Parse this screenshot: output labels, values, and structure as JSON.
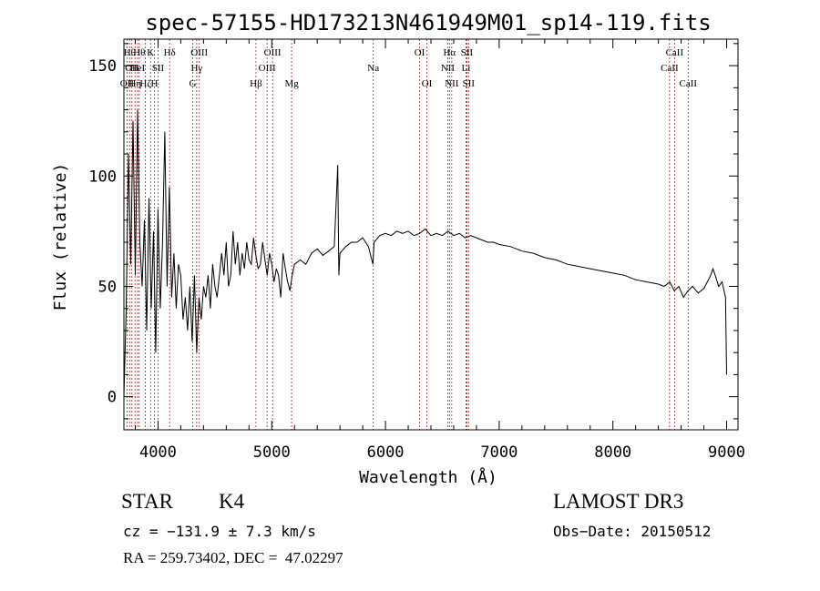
{
  "chart_data": {
    "type": "line",
    "title": "spec-57155-HD173213N461949M01_sp14-119.fits",
    "xlabel": "Wavelength (Å)",
    "ylabel": "Flux (relative)",
    "xlim": [
      3700,
      9100
    ],
    "ylim": [
      -15,
      162
    ],
    "xticks": [
      4000,
      5000,
      6000,
      7000,
      8000,
      9000
    ],
    "yticks": [
      0,
      50,
      100,
      150
    ],
    "series": [
      {
        "name": "flux",
        "x": [
          3700,
          3720,
          3740,
          3760,
          3780,
          3800,
          3820,
          3840,
          3860,
          3880,
          3900,
          3920,
          3940,
          3960,
          3980,
          4000,
          4020,
          4040,
          4060,
          4080,
          4100,
          4120,
          4140,
          4160,
          4180,
          4200,
          4220,
          4240,
          4260,
          4280,
          4300,
          4320,
          4340,
          4360,
          4380,
          4400,
          4420,
          4440,
          4460,
          4480,
          4500,
          4520,
          4540,
          4560,
          4580,
          4600,
          4620,
          4640,
          4660,
          4680,
          4700,
          4720,
          4740,
          4760,
          4780,
          4800,
          4820,
          4840,
          4860,
          4880,
          4900,
          4920,
          4940,
          4960,
          4980,
          5000,
          5020,
          5040,
          5060,
          5080,
          5100,
          5120,
          5140,
          5160,
          5180,
          5200,
          5250,
          5300,
          5350,
          5400,
          5450,
          5500,
          5550,
          5580,
          5590,
          5600,
          5650,
          5700,
          5750,
          5800,
          5850,
          5890,
          5900,
          5950,
          6000,
          6050,
          6100,
          6150,
          6200,
          6250,
          6300,
          6350,
          6400,
          6450,
          6500,
          6550,
          6600,
          6650,
          6700,
          6750,
          6800,
          6850,
          6900,
          6950,
          7000,
          7100,
          7200,
          7300,
          7400,
          7500,
          7600,
          7700,
          7800,
          7900,
          8000,
          8100,
          8200,
          8300,
          8400,
          8450,
          8500,
          8540,
          8580,
          8620,
          8660,
          8700,
          8750,
          8800,
          8830,
          8860,
          8880,
          8900,
          8930,
          8960,
          8990,
          9000
        ],
        "values": [
          0,
          40,
          110,
          60,
          125,
          55,
          130,
          70,
          50,
          80,
          30,
          90,
          40,
          75,
          20,
          85,
          40,
          70,
          120,
          50,
          95,
          45,
          65,
          40,
          60,
          55,
          35,
          45,
          30,
          50,
          25,
          55,
          20,
          45,
          35,
          50,
          45,
          55,
          40,
          60,
          50,
          45,
          55,
          65,
          55,
          70,
          50,
          55,
          75,
          60,
          70,
          55,
          65,
          58,
          70,
          62,
          60,
          72,
          64,
          58,
          60,
          70,
          62,
          55,
          65,
          60,
          52,
          58,
          55,
          45,
          65,
          58,
          52,
          48,
          55,
          60,
          62,
          60,
          65,
          67,
          64,
          66,
          68,
          105,
          55,
          65,
          68,
          70,
          70,
          72,
          68,
          60,
          70,
          73,
          74,
          73,
          75,
          74,
          75,
          73,
          74,
          76,
          73,
          74,
          73,
          75,
          73,
          74,
          72,
          73,
          72,
          71,
          70,
          70,
          69,
          68,
          66,
          65,
          63,
          62,
          60,
          59,
          58,
          57,
          56,
          55,
          53,
          52,
          51,
          50,
          52,
          48,
          50,
          45,
          48,
          50,
          47,
          49,
          52,
          55,
          58,
          55,
          50,
          52,
          45,
          10
        ]
      }
    ],
    "lines": [
      {
        "wave": 3727,
        "label": "OII",
        "row": 3
      },
      {
        "wave": 3750,
        "label": "Hθ",
        "row": 1
      },
      {
        "wave": 3770,
        "label": "OII",
        "row": 2
      },
      {
        "wave": 3798,
        "label": "Hη",
        "row": 3
      },
      {
        "wave": 3820,
        "label": "HeI",
        "row": 2
      },
      {
        "wave": 3835,
        "label": "Hθ",
        "row": 1
      },
      {
        "wave": 3889,
        "label": "Hζ",
        "row": 3
      },
      {
        "wave": 3934,
        "label": "K",
        "row": 1
      },
      {
        "wave": 3968,
        "label": "H",
        "row": 3
      },
      {
        "wave": 4000,
        "label": "SII",
        "row": 2
      },
      {
        "wave": 4102,
        "label": "Hδ",
        "row": 1
      },
      {
        "wave": 4305,
        "label": "G",
        "row": 3
      },
      {
        "wave": 4340,
        "label": "Hγ",
        "row": 2
      },
      {
        "wave": 4363,
        "label": "OIII",
        "row": 1
      },
      {
        "wave": 4861,
        "label": "Hβ",
        "row": 3
      },
      {
        "wave": 4959,
        "label": "OIII",
        "row": 2
      },
      {
        "wave": 5007,
        "label": "OIII",
        "row": 1
      },
      {
        "wave": 5175,
        "label": "Mg",
        "row": 3
      },
      {
        "wave": 5893,
        "label": "Na",
        "row": 2
      },
      {
        "wave": 6300,
        "label": "OI",
        "row": 1
      },
      {
        "wave": 6364,
        "label": "OI",
        "row": 3
      },
      {
        "wave": 6548,
        "label": "NII",
        "row": 2
      },
      {
        "wave": 6563,
        "label": "Hα",
        "row": 1
      },
      {
        "wave": 6583,
        "label": "NII",
        "row": 3
      },
      {
        "wave": 6708,
        "label": "Li",
        "row": 2
      },
      {
        "wave": 6716,
        "label": "SII",
        "row": 1
      },
      {
        "wave": 6731,
        "label": "SII",
        "row": 3
      },
      {
        "wave": 8498,
        "label": "CaII",
        "row": 2
      },
      {
        "wave": 8542,
        "label": "CaII",
        "row": 1
      },
      {
        "wave": 8662,
        "label": "CaII",
        "row": 3
      }
    ]
  },
  "info": {
    "object_class": "STAR",
    "subclass": "K4",
    "survey": "LAMOST DR3",
    "cz": "cz = −131.9 ± 7.3 km/s",
    "obs_date": "Obs−Date: 20150512",
    "coords": "RA = 259.73402, DEC =  47.02297"
  },
  "colors": {
    "spectrum": "#000000",
    "line_marker": "#b22222",
    "axis": "#000000"
  }
}
